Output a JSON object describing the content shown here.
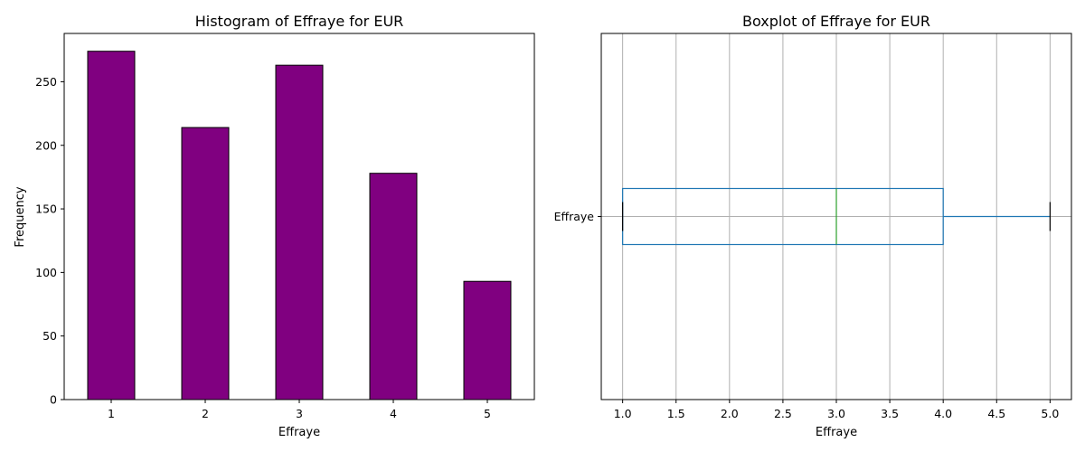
{
  "chart_data": [
    {
      "type": "bar",
      "title": "Histogram of Effraye for EUR",
      "xlabel": "Effraye",
      "ylabel": "Frequency",
      "categories": [
        "1",
        "2",
        "3",
        "4",
        "5"
      ],
      "values": [
        274,
        214,
        263,
        178,
        93
      ],
      "ylim": [
        0,
        288
      ],
      "yticks": [
        "0",
        "50",
        "100",
        "150",
        "200",
        "250"
      ],
      "bar_color": "#800080",
      "edge_color": "#000000",
      "grid": false
    },
    {
      "type": "boxplot",
      "title": "Boxplot of Effraye for EUR",
      "xlabel": "Effraye",
      "category": "Effraye",
      "orientation": "horizontal",
      "whisker_low": 1.0,
      "q1": 1.0,
      "median": 3.0,
      "q3": 4.0,
      "whisker_high": 5.0,
      "xlim": [
        0.8,
        5.2
      ],
      "xticks": [
        "1.0",
        "1.5",
        "2.0",
        "2.5",
        "3.0",
        "3.5",
        "4.0",
        "4.5",
        "5.0"
      ],
      "box_color": "#1f77b4",
      "median_color": "#2ca02c",
      "grid": true
    }
  ]
}
